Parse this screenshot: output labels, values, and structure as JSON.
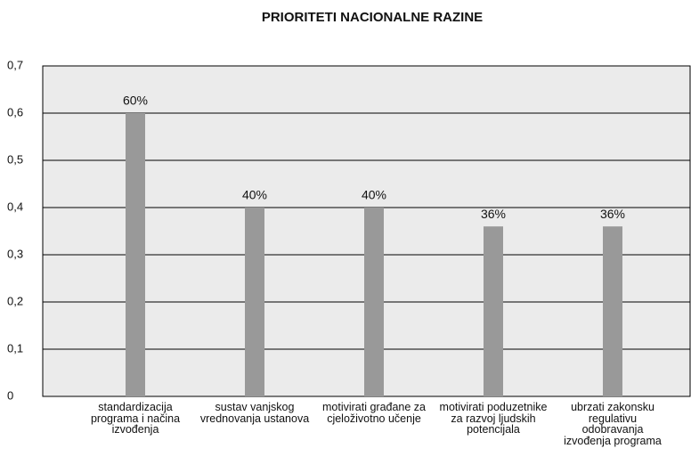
{
  "chart_data": {
    "type": "bar",
    "title": "PRIORITETI NACIONALNE RAZINE",
    "categories": [
      "standardizacija programa i načina izvođenja",
      "sustav vanjskog vrednovanja ustanova",
      "motivirati građane za cjeloživotno učenje",
      "motivirati poduzetnike za razvoj ljudskih potencijala",
      "ubrzati zakonsku regulativu odobravanja izvođenja programa"
    ],
    "values": [
      0.6,
      0.4,
      0.4,
      0.36,
      0.36
    ],
    "value_labels": [
      "60%",
      "40%",
      "40%",
      "36%",
      "36%"
    ],
    "color": "#999999",
    "ylim": [
      0,
      0.7
    ],
    "yticks": [
      0,
      {
        "value": 0.1,
        "label": "0,1"
      },
      {
        "value": 0.2,
        "label": "0,2"
      },
      {
        "value": 0.3,
        "label": "0,3"
      },
      {
        "value": 0.4,
        "label": "0,4"
      },
      {
        "value": 0.5,
        "label": "0,5"
      },
      {
        "value": 0.6,
        "label": "0,6"
      },
      {
        "value": 0.7,
        "label": "0,7"
      }
    ],
    "grid": true
  }
}
